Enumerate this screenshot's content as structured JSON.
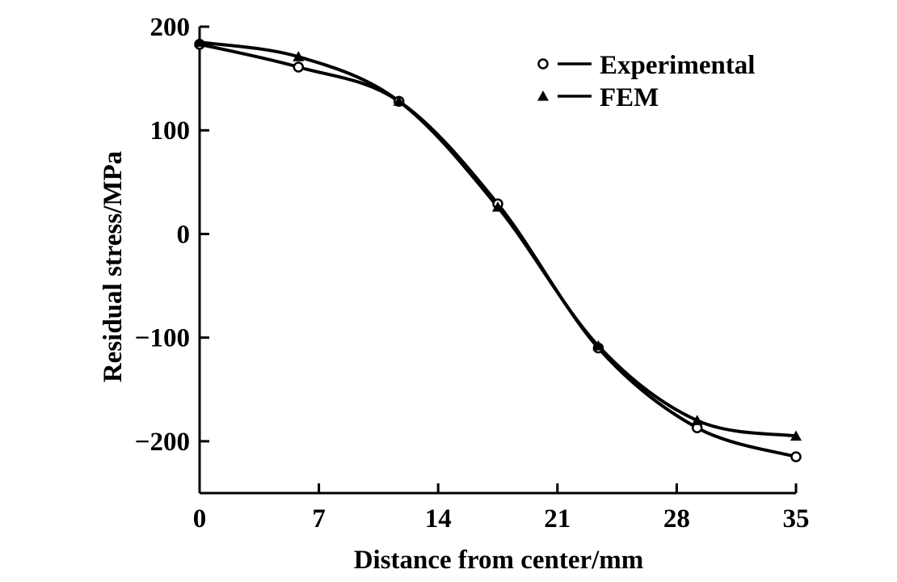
{
  "chart_data": {
    "type": "line",
    "title": "",
    "xlabel": "Distance from center/mm",
    "ylabel": "Residual stress/MPa",
    "xlim": [
      0,
      35
    ],
    "ylim": [
      -250,
      200
    ],
    "xticks": [
      0,
      7,
      14,
      21,
      28,
      35
    ],
    "xtick_labels": [
      "0",
      "7",
      "14",
      "21",
      "28",
      "35"
    ],
    "yticks": [
      200,
      100,
      0,
      -100,
      -200
    ],
    "ytick_labels": [
      "200",
      "100",
      "0",
      "−100",
      "−200"
    ],
    "grid": false,
    "legend_position": "top-right",
    "series": [
      {
        "name": "Experimental",
        "marker": "open-circle",
        "color": "#000000",
        "points": [
          [
            0,
            183
          ],
          [
            5.8,
            161
          ],
          [
            11.7,
            128
          ],
          [
            17.5,
            29
          ],
          [
            23.4,
            -110
          ],
          [
            29.2,
            -187
          ],
          [
            35,
            -215
          ]
        ]
      },
      {
        "name": "FEM",
        "marker": "filled-triangle",
        "color": "#000000",
        "points": [
          [
            0,
            185
          ],
          [
            5.8,
            171
          ],
          [
            11.7,
            128
          ],
          [
            17.5,
            26
          ],
          [
            23.4,
            -108
          ],
          [
            29.2,
            -180
          ],
          [
            35,
            -195
          ]
        ]
      }
    ]
  }
}
